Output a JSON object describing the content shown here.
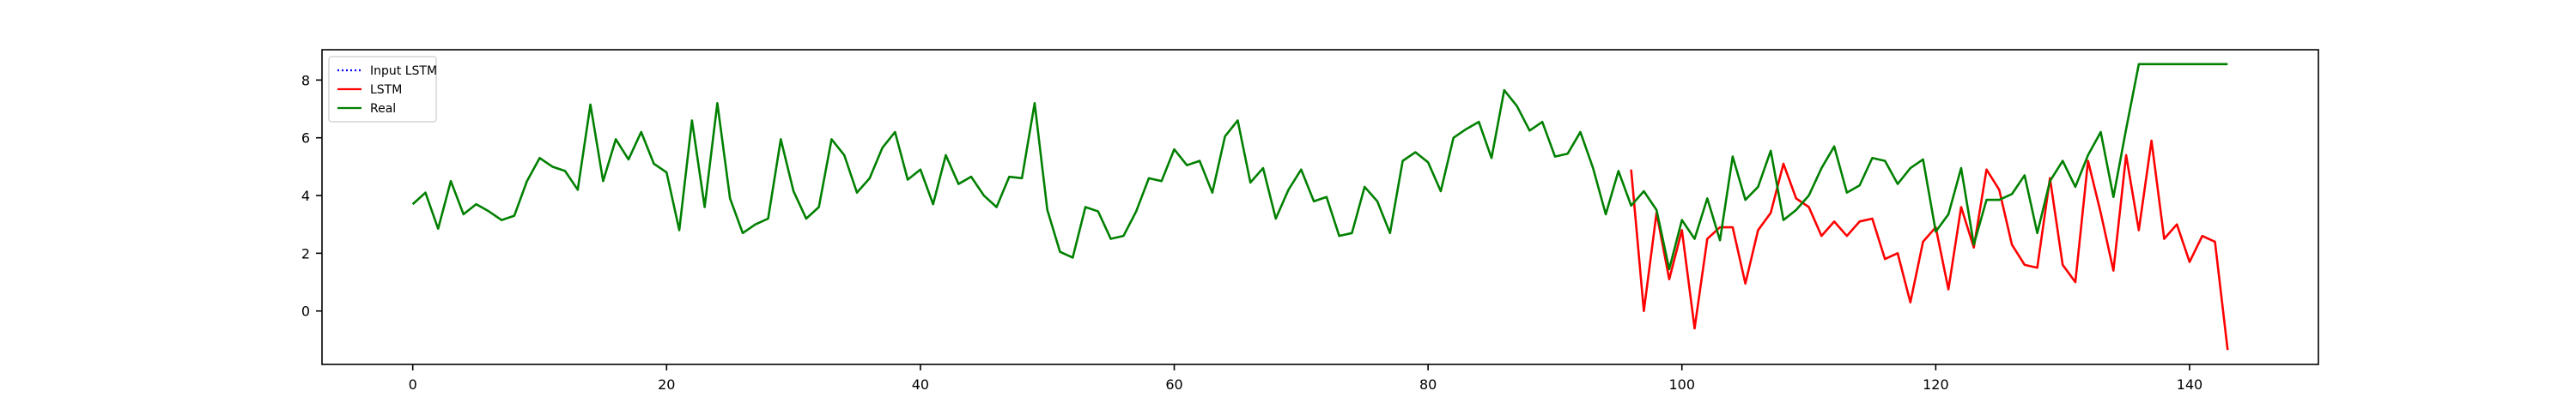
{
  "chart_data": {
    "type": "line",
    "title": "",
    "xlabel": "",
    "ylabel": "",
    "xlim": [
      -7.15,
      150.15
    ],
    "ylim": [
      -1.85,
      9.05
    ],
    "x_ticks": [
      0,
      20,
      40,
      60,
      80,
      100,
      120,
      140
    ],
    "y_ticks": [
      0,
      2,
      4,
      6,
      8
    ],
    "grid": false,
    "legend_position": "top-left",
    "colors": {
      "input_lstm": "#0000ff",
      "lstm": "#ff0000",
      "real": "#008000",
      "axes": "#000000"
    },
    "series": [
      {
        "name": "Input LSTM",
        "style": "dotted",
        "x": [],
        "values": []
      },
      {
        "name": "LSTM",
        "style": "solid",
        "x": [
          96,
          97,
          98,
          99,
          100,
          101,
          102,
          103,
          104,
          105,
          106,
          107,
          108,
          109,
          110,
          111,
          112,
          113,
          114,
          115,
          116,
          117,
          118,
          119,
          120,
          121,
          122,
          123,
          124,
          125,
          126,
          127,
          128,
          129,
          130,
          131,
          132,
          133,
          134,
          135,
          136,
          137,
          138,
          139,
          140,
          141,
          142,
          143
        ],
        "values": [
          4.9,
          0.0,
          3.4,
          1.1,
          2.8,
          -0.6,
          2.5,
          2.9,
          2.9,
          0.95,
          2.8,
          3.4,
          5.1,
          3.9,
          3.6,
          2.6,
          3.1,
          2.6,
          3.1,
          3.2,
          1.8,
          2.0,
          0.3,
          2.4,
          2.9,
          0.75,
          3.6,
          2.2,
          4.9,
          4.2,
          2.3,
          1.6,
          1.5,
          4.6,
          1.6,
          1.0,
          5.2,
          3.4,
          1.4,
          5.4,
          2.8,
          5.9,
          2.5,
          3.0,
          1.7,
          2.6,
          2.4,
          -1.35
        ]
      },
      {
        "name": "Real",
        "style": "solid",
        "x": [
          0,
          1,
          2,
          3,
          4,
          5,
          6,
          7,
          8,
          9,
          10,
          11,
          12,
          13,
          14,
          15,
          16,
          17,
          18,
          19,
          20,
          21,
          22,
          23,
          24,
          25,
          26,
          27,
          28,
          29,
          30,
          31,
          32,
          33,
          34,
          35,
          36,
          37,
          38,
          39,
          40,
          41,
          42,
          43,
          44,
          45,
          46,
          47,
          48,
          49,
          50,
          51,
          52,
          53,
          54,
          55,
          56,
          57,
          58,
          59,
          60,
          61,
          62,
          63,
          64,
          65,
          66,
          67,
          68,
          69,
          70,
          71,
          72,
          73,
          74,
          75,
          76,
          77,
          78,
          79,
          80,
          81,
          82,
          83,
          84,
          85,
          86,
          87,
          88,
          89,
          90,
          91,
          92,
          93,
          94,
          95,
          96,
          97,
          98,
          99,
          100,
          101,
          102,
          103,
          104,
          105,
          106,
          107,
          108,
          109,
          110,
          111,
          112,
          113,
          114,
          115,
          116,
          117,
          118,
          119,
          120,
          121,
          122,
          123,
          124,
          125,
          126,
          127,
          128,
          129,
          130,
          131,
          132,
          133,
          134,
          135,
          136,
          137,
          138,
          139,
          140,
          141,
          142,
          143
        ],
        "values": [
          3.7,
          4.1,
          2.85,
          4.5,
          3.35,
          3.7,
          3.45,
          3.15,
          3.3,
          4.5,
          5.3,
          5.0,
          4.85,
          4.2,
          7.15,
          4.5,
          5.95,
          5.25,
          6.2,
          5.1,
          4.8,
          2.8,
          6.6,
          3.6,
          7.2,
          3.9,
          2.7,
          3.0,
          3.2,
          5.95,
          4.15,
          3.2,
          3.6,
          5.95,
          5.4,
          4.1,
          4.6,
          5.65,
          6.2,
          4.55,
          4.9,
          3.7,
          5.4,
          4.4,
          4.65,
          4.0,
          3.6,
          4.65,
          4.6,
          7.2,
          3.5,
          2.05,
          1.85,
          3.6,
          3.45,
          2.5,
          2.6,
          3.45,
          4.6,
          4.5,
          5.6,
          5.05,
          5.2,
          4.1,
          6.05,
          6.6,
          4.45,
          4.95,
          3.2,
          4.2,
          4.9,
          3.8,
          3.95,
          2.6,
          2.7,
          4.3,
          3.8,
          2.7,
          5.2,
          5.5,
          5.15,
          4.15,
          6.0,
          6.3,
          6.55,
          5.3,
          7.65,
          7.1,
          6.25,
          6.55,
          5.35,
          5.45,
          6.2,
          4.95,
          3.35,
          4.85,
          3.65,
          4.15,
          3.5,
          1.45,
          3.15,
          2.5,
          3.9,
          2.45,
          5.35,
          3.85,
          4.3,
          5.55,
          3.15,
          3.5,
          4.0,
          4.95,
          5.7,
          4.1,
          4.35,
          5.3,
          5.2,
          4.4,
          4.95,
          5.25,
          2.75,
          3.35,
          4.95,
          2.3,
          3.85,
          3.85,
          4.05,
          4.7,
          2.7,
          4.5,
          5.2,
          4.3,
          5.4,
          6.2,
          3.95,
          6.3,
          8.55,
          8.55,
          8.55,
          8.55,
          8.55,
          8.55,
          8.55,
          8.55
        ]
      }
    ]
  }
}
